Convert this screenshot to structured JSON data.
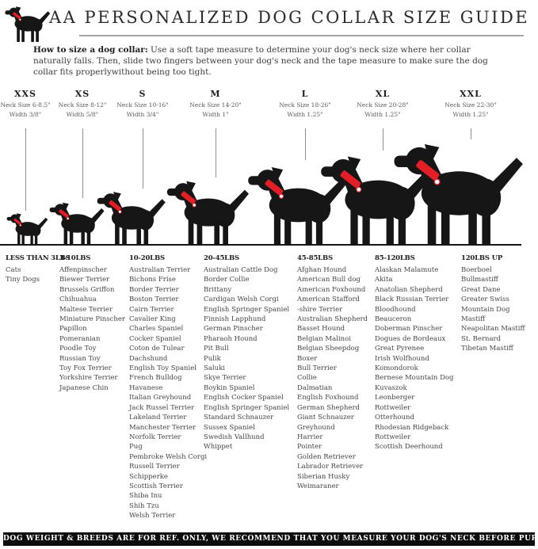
{
  "header": {
    "title": "AA PERSONALIZED DOG COLLAR SIZE GUIDE",
    "logo_icon": "dog-silhouette-icon"
  },
  "intro": {
    "bold_lead": "How to size a dog collar:",
    "text": " Use a soft tape measure to determine your dog's neck size where her collar naturally falls. Then, slide two fingers between your dog's neck and the tape measure to make sure the dog collar fits properlywithout being too tight."
  },
  "sizes": [
    {
      "label": "XXS",
      "neck": "Neck Size 6-8.5\"",
      "width": "Width 3/8\""
    },
    {
      "label": "XS",
      "neck": "Neck Size 8-12\"",
      "width": "Width 5/8\""
    },
    {
      "label": "S",
      "neck": "Neck Size 10-16\"",
      "width": "Width 3/4\""
    },
    {
      "label": "M",
      "neck": "Neck Size 14-20\"",
      "width": "Width 1\""
    },
    {
      "label": "L",
      "neck": "Neck Size 18-26\"",
      "width": "Width 1.25\""
    },
    {
      "label": "XL",
      "neck": "Neck Size 20-28\"",
      "width": "Width 1.25\""
    },
    {
      "label": "XXL",
      "neck": "Neck Size 22-30\"",
      "width": "Width 1.25\""
    }
  ],
  "weight_groups": [
    {
      "label": "LESS THAN 3LBS",
      "breeds": [
        "Cats",
        "Tiny Dogs"
      ]
    },
    {
      "label": "3-10LBS",
      "breeds": [
        "Affenpinscher",
        "Biewer Terrier",
        "Brussels Griffon",
        "Chihuahua",
        "Maltese Terrier",
        "Miniature Pinscher",
        "Papillon",
        "Pomeranian",
        "Poodle Toy",
        "Russian Toy",
        "Toy Fox Terrier",
        "Yorkshire Terrier",
        "Japanese Chin"
      ]
    },
    {
      "label": "10-20LBS",
      "breeds": [
        "Australian Terrier",
        "Bichons Frise",
        "Border Terrier",
        "Boston Terrier",
        "Cairn Terrier",
        "Cavalier King",
        "Charles Spaniel",
        "Cocker Spaniel",
        "Coton de Tulear",
        "Dachshund",
        "English Toy Spaniel",
        "French Bulldog",
        "Havanese",
        "Italian Greyhound",
        "Jack Russel Terrier",
        "Lakeland Terrier",
        "Manchester Terrier",
        "Norfolk Terrier",
        "Pug",
        "Pembroke Welsh Corgi",
        "Russell Terrier",
        "Schipperke",
        "Scottish Terrier",
        "Shiba Inu",
        "Shih Tzu",
        "Welsh Terrier"
      ]
    },
    {
      "label": "20-45LBS",
      "breeds": [
        "Australian Cattle Dog",
        "Border Collie",
        "Brittany",
        "Cardigan Welsh Corgi",
        "English Springer Spaniel",
        "Finnish Lapphund",
        "German Pinscher",
        "Pharaoh Hound",
        "Pit Bull",
        "Pulik",
        "Saluki",
        "Skye Terrier",
        "Boykin Spaniel",
        "English Cocker Spaniel",
        "English Springer Spaniel",
        "Standard Schnauzer",
        "Sussex Spaniel",
        "Swedish Vallhund",
        "Whippet"
      ]
    },
    {
      "label": "45-85LBS",
      "breeds": [
        "Afghan Hound",
        "American Bull dog",
        "American Foxhound",
        "American Stafford",
        "-shire Terrier",
        "Australian Shepherd",
        "Basset Hound",
        "Belgian Malinoi",
        "Belgian Sheepdog",
        "Boxer",
        "Bull Terrier",
        "Collie",
        "Dalmatian",
        "English Foxhound",
        "German Shepherd",
        "Giant Schnauzer",
        "Greyhound",
        "Harrier",
        "Pointer",
        "Golden Retriever",
        "Labrador Retriever",
        "Siberian Husky",
        "Weimaraner"
      ]
    },
    {
      "label": "85-120LBS",
      "breeds": [
        "Alaskan Malamute",
        "Akita",
        "Anatolian Shepherd",
        "Black Russian Terrier",
        "Bloodhound",
        "Beauceron",
        "Doberman Pinscher",
        "Dogues de Bordeaux",
        "Great Pyrenee",
        "Irish Wolfhound",
        "Komondorok",
        "Bernese Mountain Dog",
        "Kuvaszok",
        "Leonberger",
        "Rottweiler",
        "Otterhound",
        "Rhodesian Ridgeback",
        "Rottweiler",
        "Scottish Deerhound"
      ]
    },
    {
      "label": "120LBS UP",
      "breeds": [
        "Boerboel",
        "Bullmastiff",
        "Great Dane",
        "Greater Swiss",
        "Mountain Dog",
        "Mastiff",
        "Neapolitan Mastiff",
        "St. Bernard",
        "Tibetan Mastiff"
      ]
    }
  ],
  "footer": {
    "text": "DOG WEIGHT & BREEDS ARE FOR REF. ONLY, WE RECOMMEND THAT YOU MEASURE YOUR DOG'S NECK BEFORE PURCHASE"
  },
  "colors": {
    "collar_red": "#e31e26",
    "silhouette_black": "#161616",
    "footer_bg": "#0d0d0d",
    "rule_gray": "#a6a6a6"
  }
}
